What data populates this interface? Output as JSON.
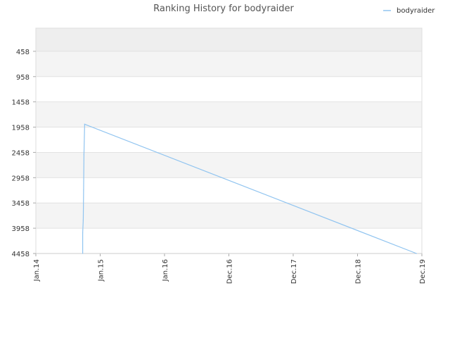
{
  "chart_data": {
    "type": "line",
    "title": "Ranking History for bodyraider",
    "xlabel": "",
    "ylabel": "",
    "y_inverted": true,
    "ylim": [
      4458,
      0
    ],
    "y_ticks": [
      "458",
      "958",
      "1458",
      "1958",
      "2458",
      "2958",
      "3458",
      "3958",
      "4458"
    ],
    "x_ticks": [
      "Jan.14",
      "Jan.15",
      "Jan.16",
      "Dec.16",
      "Dec.17",
      "Dec.18",
      "Dec.19"
    ],
    "xlim": [
      "2014-01",
      "2019-12"
    ],
    "grid": true,
    "legend": {
      "position": "top-right",
      "entries": [
        "bodyraider"
      ]
    },
    "series": [
      {
        "name": "bodyraider",
        "color": "#90c4f0",
        "points": [
          {
            "x": "2014-09-20",
            "y": 4458
          },
          {
            "x": "2014-09-20",
            "y": 4050
          },
          {
            "x": "2014-09-23",
            "y": 3800
          },
          {
            "x": "2014-09-25",
            "y": 3200
          },
          {
            "x": "2014-09-27",
            "y": 2500
          },
          {
            "x": "2014-10-01",
            "y": 1900
          },
          {
            "x": "2019-11-01",
            "y": 4458
          }
        ]
      }
    ]
  }
}
